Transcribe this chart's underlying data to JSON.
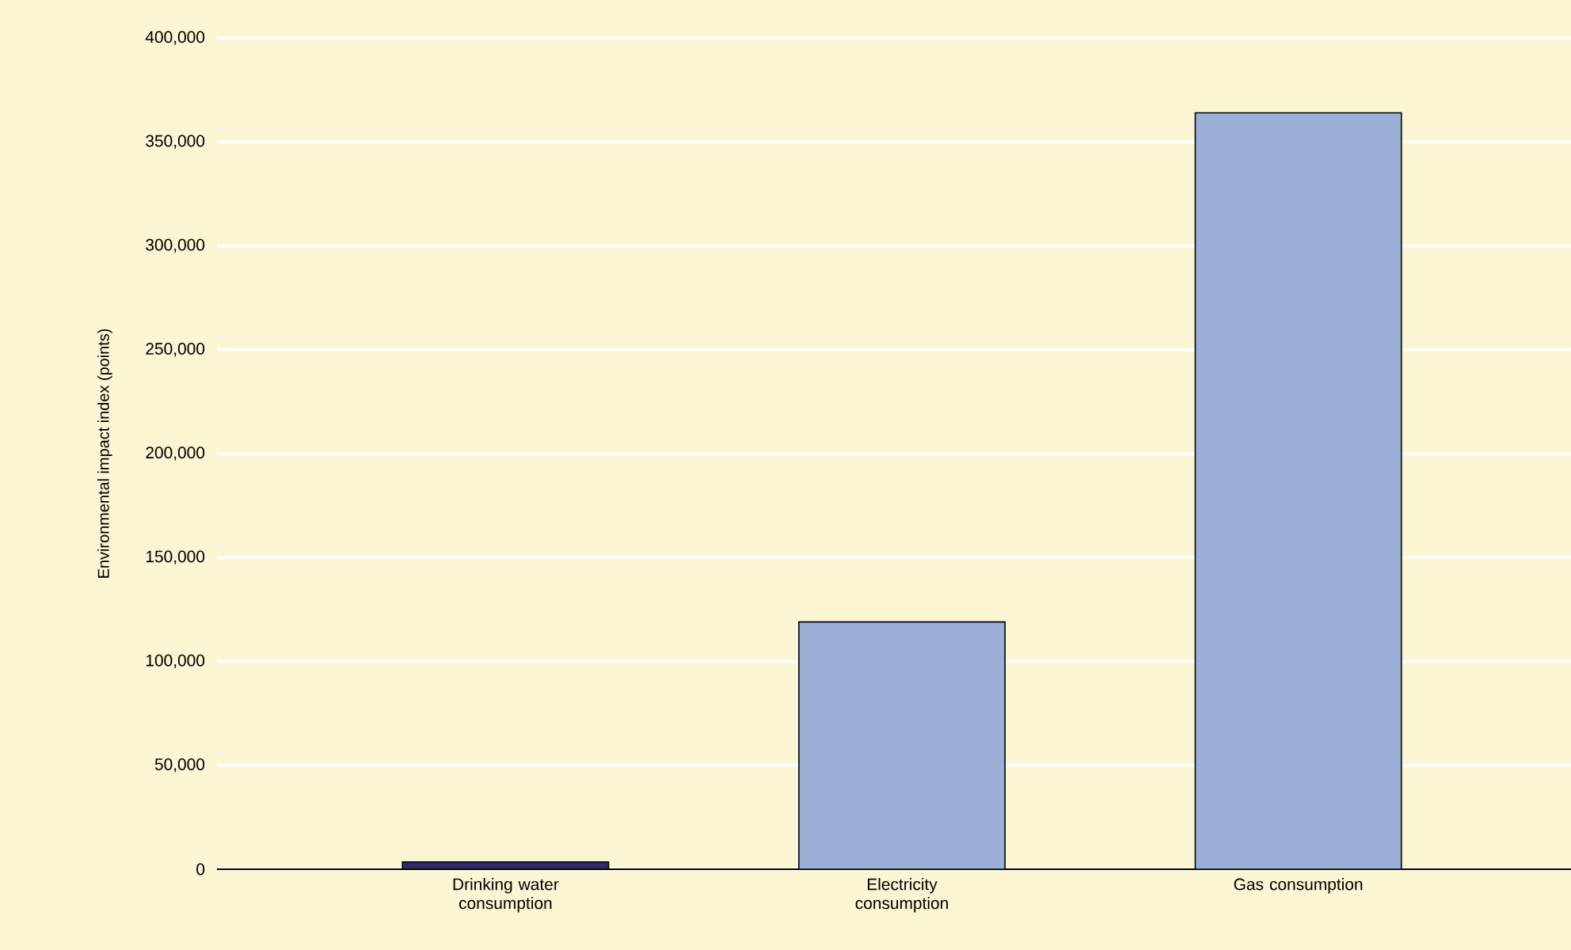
{
  "chart_data": {
    "type": "bar",
    "ylabel": "Environmental impact index (points)",
    "categories": [
      "Drinking water consumption",
      "Electricity consumption",
      "Gas consumption"
    ],
    "values": [
      3500,
      119000,
      364000
    ],
    "colors": [
      "#2f2a6a",
      "#9bafd7",
      "#9bafd7"
    ],
    "ylim": [
      0,
      400000
    ],
    "yticks": [
      {
        "value": 0,
        "label": "0"
      },
      {
        "value": 50000,
        "label": "50,000"
      },
      {
        "value": 100000,
        "label": "100,000"
      },
      {
        "value": 150000,
        "label": "150,000"
      },
      {
        "value": 200000,
        "label": "200,000"
      },
      {
        "value": 250000,
        "label": "250,000"
      },
      {
        "value": 300000,
        "label": "300,000"
      },
      {
        "value": 350000,
        "label": "350,000"
      },
      {
        "value": 400000,
        "label": "400,000"
      }
    ],
    "grid": "y"
  }
}
